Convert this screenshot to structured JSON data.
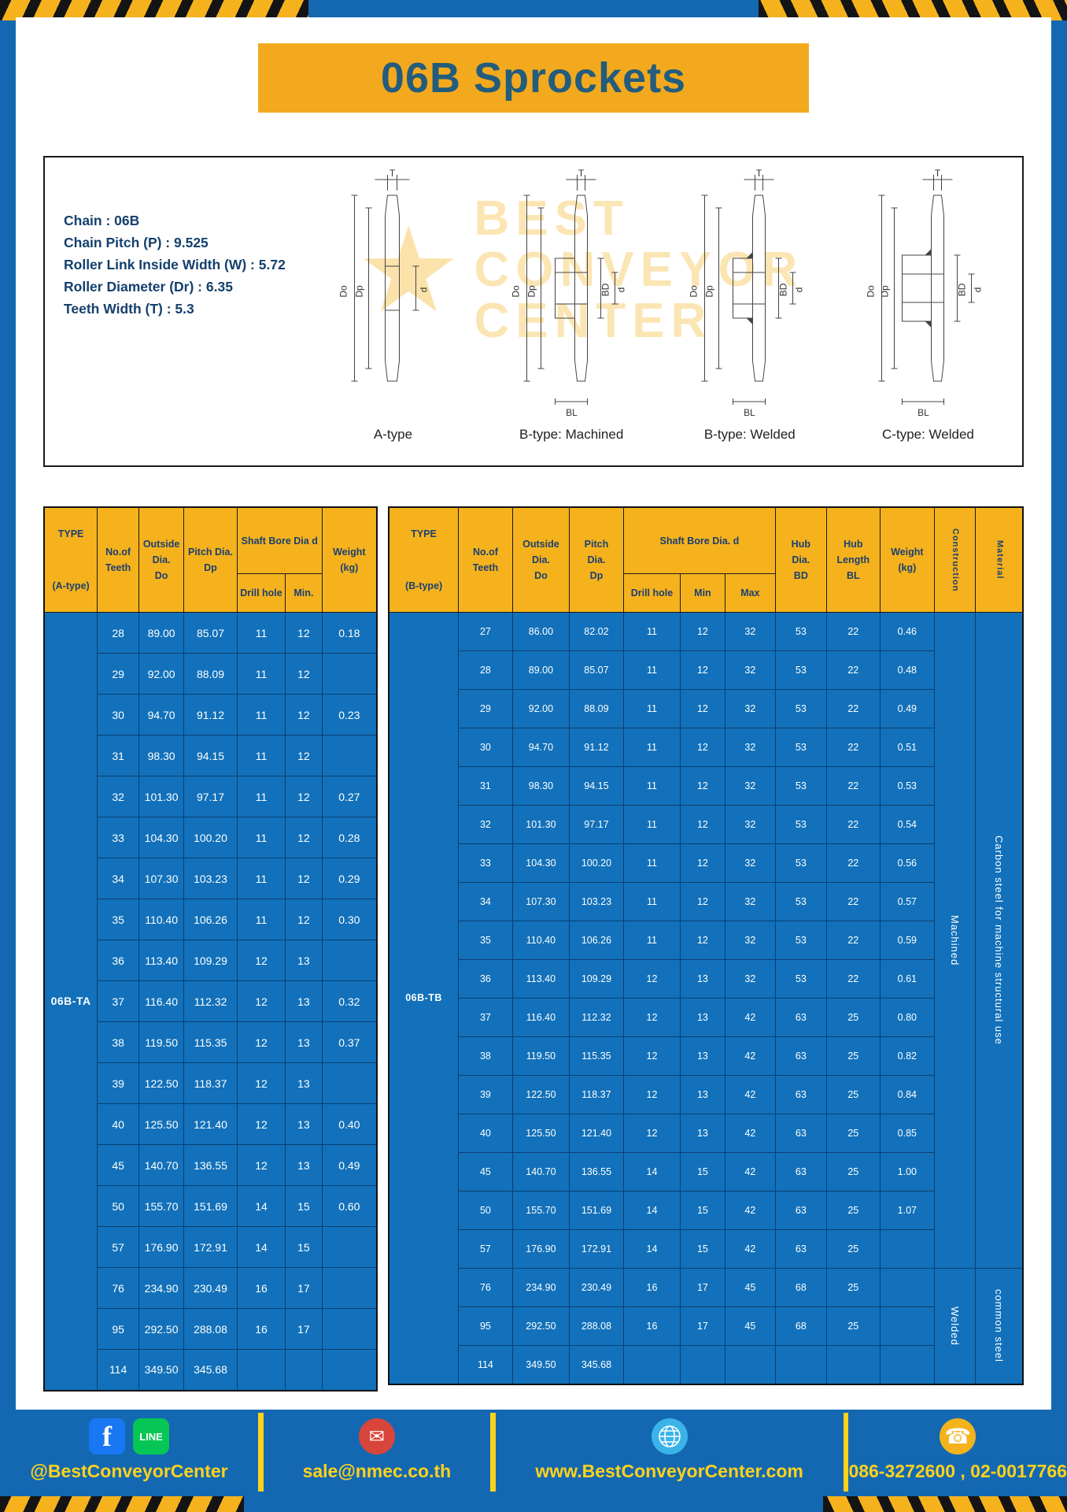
{
  "page": {
    "title": "06B Sprockets"
  },
  "colors": {
    "frame_blue": "#1468b1",
    "accent_yellow": "#f5b21d",
    "table_body_blue": "#1271ba",
    "header_text_blue": "#1b3f70",
    "footer_text_yellow": "#ffd21c"
  },
  "specs": {
    "lines": [
      "Chain : 06B",
      "Chain Pitch (P) : 9.525",
      "Roller Link Inside Width (W) : 5.72",
      "Roller Diameter (Dr) : 6.35",
      "Teeth Width (T) : 5.3"
    ],
    "dims": {
      "T": "T",
      "Do": "Do",
      "Dp": "Dp",
      "d": "d",
      "BD": "BD",
      "BL": "BL"
    },
    "drawings": [
      {
        "caption": "A-type"
      },
      {
        "caption": "B-type: Machined"
      },
      {
        "caption": "B-type: Welded"
      },
      {
        "caption": "C-type: Welded"
      }
    ],
    "watermark": [
      "BEST",
      "CONVEYOR",
      "CENTER"
    ]
  },
  "table_a": {
    "headers": {
      "type": "TYPE",
      "type_sub": "(A-type)",
      "teeth": "No.of\nTeeth",
      "outside": "Outside\nDia.\nDo",
      "pitch": "Pitch Dia.\nDp",
      "bore": "Shaft Bore Dia d",
      "drill": "Drill hole",
      "min": "Min.",
      "weight": "Weight\n(kg)"
    },
    "type_value": "06B-TA",
    "rows": [
      [
        "28",
        "89.00",
        "85.07",
        "11",
        "12",
        "0.18"
      ],
      [
        "29",
        "92.00",
        "88.09",
        "11",
        "12",
        ""
      ],
      [
        "30",
        "94.70",
        "91.12",
        "11",
        "12",
        "0.23"
      ],
      [
        "31",
        "98.30",
        "94.15",
        "11",
        "12",
        ""
      ],
      [
        "32",
        "101.30",
        "97.17",
        "11",
        "12",
        "0.27"
      ],
      [
        "33",
        "104.30",
        "100.20",
        "11",
        "12",
        "0.28"
      ],
      [
        "34",
        "107.30",
        "103.23",
        "11",
        "12",
        "0.29"
      ],
      [
        "35",
        "110.40",
        "106.26",
        "11",
        "12",
        "0.30"
      ],
      [
        "36",
        "113.40",
        "109.29",
        "12",
        "13",
        ""
      ],
      [
        "37",
        "116.40",
        "112.32",
        "12",
        "13",
        "0.32"
      ],
      [
        "38",
        "119.50",
        "115.35",
        "12",
        "13",
        "0.37"
      ],
      [
        "39",
        "122.50",
        "118.37",
        "12",
        "13",
        ""
      ],
      [
        "40",
        "125.50",
        "121.40",
        "12",
        "13",
        "0.40"
      ],
      [
        "45",
        "140.70",
        "136.55",
        "12",
        "13",
        "0.49"
      ],
      [
        "50",
        "155.70",
        "151.69",
        "14",
        "15",
        "0.60"
      ],
      [
        "57",
        "176.90",
        "172.91",
        "14",
        "15",
        ""
      ],
      [
        "76",
        "234.90",
        "230.49",
        "16",
        "17",
        ""
      ],
      [
        "95",
        "292.50",
        "288.08",
        "16",
        "17",
        ""
      ],
      [
        "114",
        "349.50",
        "345.68",
        "",
        "",
        ""
      ]
    ]
  },
  "table_b": {
    "headers": {
      "type": "TYPE",
      "type_sub": "(B-type)",
      "teeth": "No.of\nTeeth",
      "outside": "Outside\nDia.\nDo",
      "pitch": "Pitch\nDia.\nDp",
      "bore": "Shaft Bore Dia. d",
      "drill": "Drill hole",
      "min": "Min",
      "max": "Max",
      "hub_dia": "Hub\nDia.\nBD",
      "hub_len": "Hub\nLength\nBL",
      "weight": "Weight\n(kg)",
      "construction": "Construction",
      "material": "Material"
    },
    "type_value": "06B-TB",
    "construction_groups": [
      {
        "label": "Machined",
        "span": 17
      },
      {
        "label": "Welded",
        "span": 3
      }
    ],
    "material_groups": [
      {
        "label": "Carbon steel for machine structural use",
        "span": 17
      },
      {
        "label": "common steel",
        "span": 3
      }
    ],
    "rows": [
      [
        "27",
        "86.00",
        "82.02",
        "11",
        "12",
        "32",
        "53",
        "22",
        "0.46"
      ],
      [
        "28",
        "89.00",
        "85.07",
        "11",
        "12",
        "32",
        "53",
        "22",
        "0.48"
      ],
      [
        "29",
        "92.00",
        "88.09",
        "11",
        "12",
        "32",
        "53",
        "22",
        "0.49"
      ],
      [
        "30",
        "94.70",
        "91.12",
        "11",
        "12",
        "32",
        "53",
        "22",
        "0.51"
      ],
      [
        "31",
        "98.30",
        "94.15",
        "11",
        "12",
        "32",
        "53",
        "22",
        "0.53"
      ],
      [
        "32",
        "101.30",
        "97.17",
        "11",
        "12",
        "32",
        "53",
        "22",
        "0.54"
      ],
      [
        "33",
        "104.30",
        "100.20",
        "11",
        "12",
        "32",
        "53",
        "22",
        "0.56"
      ],
      [
        "34",
        "107.30",
        "103.23",
        "11",
        "12",
        "32",
        "53",
        "22",
        "0.57"
      ],
      [
        "35",
        "110.40",
        "106.26",
        "11",
        "12",
        "32",
        "53",
        "22",
        "0.59"
      ],
      [
        "36",
        "113.40",
        "109.29",
        "12",
        "13",
        "32",
        "53",
        "22",
        "0.61"
      ],
      [
        "37",
        "116.40",
        "112.32",
        "12",
        "13",
        "42",
        "63",
        "25",
        "0.80"
      ],
      [
        "38",
        "119.50",
        "115.35",
        "12",
        "13",
        "42",
        "63",
        "25",
        "0.82"
      ],
      [
        "39",
        "122.50",
        "118.37",
        "12",
        "13",
        "42",
        "63",
        "25",
        "0.84"
      ],
      [
        "40",
        "125.50",
        "121.40",
        "12",
        "13",
        "42",
        "63",
        "25",
        "0.85"
      ],
      [
        "45",
        "140.70",
        "136.55",
        "14",
        "15",
        "42",
        "63",
        "25",
        "1.00"
      ],
      [
        "50",
        "155.70",
        "151.69",
        "14",
        "15",
        "42",
        "63",
        "25",
        "1.07"
      ],
      [
        "57",
        "176.90",
        "172.91",
        "14",
        "15",
        "42",
        "63",
        "25",
        ""
      ],
      [
        "76",
        "234.90",
        "230.49",
        "16",
        "17",
        "45",
        "68",
        "25",
        ""
      ],
      [
        "95",
        "292.50",
        "288.08",
        "16",
        "17",
        "45",
        "68",
        "25",
        ""
      ],
      [
        "114",
        "349.50",
        "345.68",
        "",
        "",
        "",
        "",
        "",
        ""
      ]
    ]
  },
  "footer": {
    "social_label": "@BestConveyorCenter",
    "email_label": "sale@nmec.co.th",
    "website_label": "www.BestConveyorCenter.com",
    "phone_label": "086-3272600 , 02-0017766",
    "facebook_glyph": "f",
    "line_glyph": "LINE",
    "mail_glyph": "✉",
    "phone_glyph": "☎"
  }
}
